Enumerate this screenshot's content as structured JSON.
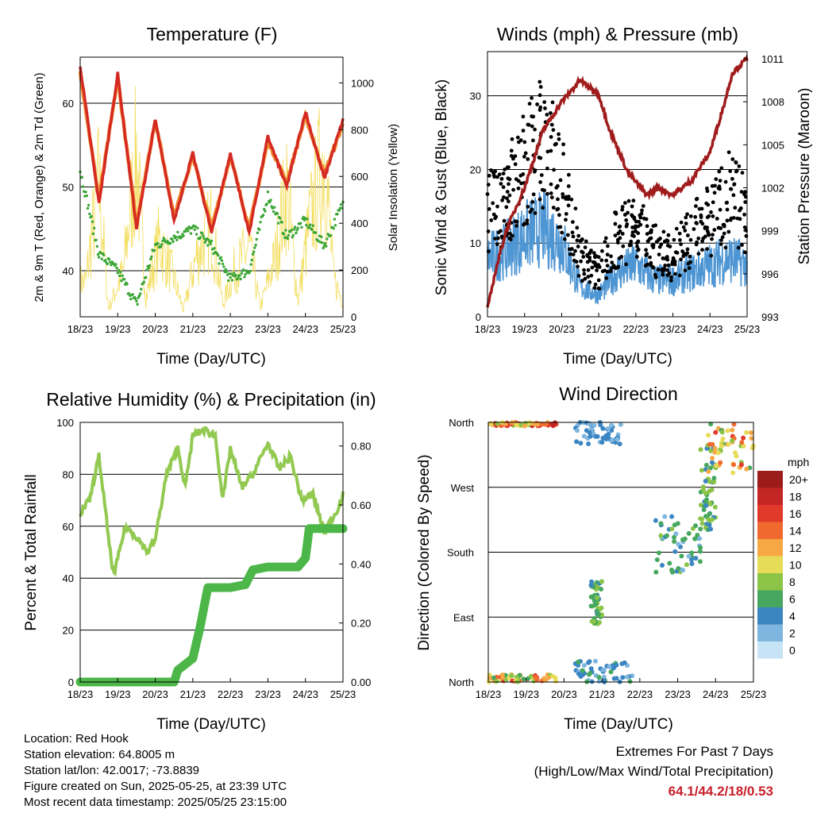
{
  "x_ticks": [
    "18/23",
    "19/23",
    "20/23",
    "21/23",
    "22/23",
    "23/23",
    "24/23",
    "25/23"
  ],
  "x_label": "Time (Day/UTC)",
  "colors": {
    "temp_2m": "#d42a23",
    "temp_9m": "#f18a2d",
    "dewpoint": "#3aa635",
    "solar": "#f3dd5a",
    "wind": "#4d95d3",
    "gust": "#000000",
    "pressure": "#a01c1c",
    "rh": "#92c951",
    "rain": "#4cb648",
    "extremes": "#c8202a"
  },
  "chart_data": [
    {
      "type": "line",
      "title": "Temperature (F)",
      "xlabel": "Time (Day/UTC)",
      "ylabel": "2m & 9m T (Red, Orange) & 2m Td (Green)",
      "y2label": "Solar Insolation (Yellow)",
      "ylim": [
        34.5,
        65.5
      ],
      "yticks": [
        40,
        50,
        60
      ],
      "y2lim": [
        0,
        1110
      ],
      "y2ticks": [
        0,
        200,
        400,
        600,
        800,
        1000
      ],
      "x": [
        0,
        0.5,
        1,
        1.5,
        2,
        2.5,
        3,
        3.5,
        4,
        4.5,
        5,
        5.5,
        6,
        6.5,
        7
      ],
      "series": [
        {
          "key": "temp_2m",
          "values": [
            64.5,
            48,
            63.5,
            45,
            58,
            46,
            54,
            44.5,
            54,
            44.5,
            56,
            50,
            59,
            51,
            58
          ]
        },
        {
          "key": "temp_9m",
          "values": [
            63.8,
            48.5,
            63,
            45.6,
            58,
            46.5,
            53.7,
            45,
            53.7,
            45,
            55.5,
            50.5,
            58.5,
            51.5,
            57.5
          ]
        },
        {
          "key": "dewpoint",
          "values": [
            52,
            42,
            40,
            36,
            43,
            44,
            45,
            43,
            39,
            40,
            49,
            44,
            46,
            43,
            48
          ]
        },
        {
          "key": "solar",
          "points": [
            [
              0.15,
              230
            ],
            [
              0.5,
              900
            ],
            [
              0.75,
              50
            ],
            [
              1.15,
              300
            ],
            [
              1.5,
              1060
            ],
            [
              1.75,
              120
            ],
            [
              2.1,
              500
            ],
            [
              2.5,
              250
            ],
            [
              2.75,
              40
            ],
            [
              3.1,
              400
            ],
            [
              3.5,
              600
            ],
            [
              3.8,
              80
            ],
            [
              4.1,
              300
            ],
            [
              4.5,
              450
            ],
            [
              4.8,
              60
            ],
            [
              5.2,
              400
            ],
            [
              5.5,
              850
            ],
            [
              5.8,
              100
            ],
            [
              6.1,
              600
            ],
            [
              6.5,
              1080
            ],
            [
              6.75,
              250
            ],
            [
              7,
              100
            ]
          ]
        }
      ]
    },
    {
      "type": "scatter",
      "title": "Winds (mph) & Pressure (mb)",
      "xlabel": "Time (Day/UTC)",
      "ylabel": "Sonic Wind & Gust (Blue, Black)",
      "y2label": "Station Pressure (Maroon)",
      "ylim": [
        0,
        36
      ],
      "yticks": [
        0,
        10,
        20,
        30
      ],
      "y2lim": [
        993,
        1011.5
      ],
      "y2ticks": [
        993,
        996,
        999,
        1002,
        1005,
        1008,
        1011
      ],
      "wind_mean": [
        [
          0,
          8
        ],
        [
          0.5,
          9
        ],
        [
          1,
          11
        ],
        [
          1.5,
          12
        ],
        [
          2,
          10
        ],
        [
          2.5,
          4
        ],
        [
          3,
          3
        ],
        [
          3.5,
          6
        ],
        [
          4,
          7
        ],
        [
          4.5,
          5
        ],
        [
          5,
          5
        ],
        [
          5.5,
          6
        ],
        [
          6,
          7
        ],
        [
          6.5,
          8
        ],
        [
          7,
          7
        ]
      ],
      "gust_mean": [
        [
          0,
          14
        ],
        [
          0.5,
          16
        ],
        [
          1,
          20
        ],
        [
          1.5,
          24
        ],
        [
          2,
          18
        ],
        [
          2.5,
          8
        ],
        [
          3,
          6
        ],
        [
          3.5,
          11
        ],
        [
          4,
          12
        ],
        [
          4.5,
          9
        ],
        [
          5,
          8
        ],
        [
          5.5,
          11
        ],
        [
          6,
          13
        ],
        [
          6.5,
          16
        ],
        [
          7,
          14
        ]
      ],
      "pressure": [
        [
          0,
          993.5
        ],
        [
          0.2,
          996
        ],
        [
          0.5,
          999
        ],
        [
          1,
          1002
        ],
        [
          1.5,
          1006
        ],
        [
          2,
          1008
        ],
        [
          2.5,
          1009.5
        ],
        [
          3,
          1008.5
        ],
        [
          3.3,
          1006
        ],
        [
          3.8,
          1003
        ],
        [
          4.3,
          1001.5
        ],
        [
          4.6,
          1002
        ],
        [
          5,
          1001.5
        ],
        [
          5.5,
          1002.5
        ],
        [
          6,
          1004.5
        ],
        [
          6.4,
          1008
        ],
        [
          6.6,
          1010
        ],
        [
          6.8,
          1010.5
        ],
        [
          7,
          1011
        ]
      ]
    },
    {
      "type": "line",
      "title": "Relative Humidity (%) & Precipitation (in)",
      "xlabel": "Time (Day/UTC)",
      "ylabel": "Percent & Total Rainfall",
      "ylim": [
        0,
        100
      ],
      "yticks": [
        0,
        20,
        40,
        60,
        80,
        100
      ],
      "y2lim": [
        0,
        0.88
      ],
      "y2ticks": [
        "0.00",
        "0.20",
        "0.40",
        "0.60",
        "0.80"
      ],
      "series": [
        {
          "key": "rh",
          "points": [
            [
              0,
              65
            ],
            [
              0.25,
              70
            ],
            [
              0.5,
              87
            ],
            [
              0.8,
              50
            ],
            [
              0.9,
              41
            ],
            [
              1.2,
              60
            ],
            [
              1.5,
              56
            ],
            [
              1.8,
              50
            ],
            [
              2.0,
              55
            ],
            [
              2.3,
              80
            ],
            [
              2.6,
              90
            ],
            [
              2.8,
              75
            ],
            [
              3.0,
              95
            ],
            [
              3.3,
              97
            ],
            [
              3.6,
              95
            ],
            [
              3.8,
              70
            ],
            [
              4.0,
              90
            ],
            [
              4.3,
              75
            ],
            [
              4.6,
              80
            ],
            [
              5.0,
              92
            ],
            [
              5.3,
              82
            ],
            [
              5.6,
              87
            ],
            [
              5.9,
              70
            ],
            [
              6.2,
              72
            ],
            [
              6.5,
              58
            ],
            [
              6.8,
              65
            ],
            [
              7.0,
              72
            ]
          ]
        },
        {
          "key": "rain",
          "points": [
            [
              0,
              0
            ],
            [
              2.5,
              0
            ],
            [
              2.6,
              0.04
            ],
            [
              3.0,
              0.08
            ],
            [
              3.2,
              0.19
            ],
            [
              3.4,
              0.32
            ],
            [
              3.6,
              0.32
            ],
            [
              4.0,
              0.32
            ],
            [
              4.4,
              0.33
            ],
            [
              4.6,
              0.38
            ],
            [
              5.0,
              0.39
            ],
            [
              5.8,
              0.39
            ],
            [
              6.0,
              0.42
            ],
            [
              6.1,
              0.52
            ],
            [
              7,
              0.52
            ]
          ]
        }
      ]
    },
    {
      "type": "scatter",
      "title": "Wind Direction",
      "xlabel": "Time (Day/UTC)",
      "ylabel": "Direction (Colored By Speed)",
      "yticks": [
        "North",
        "East",
        "South",
        "West",
        "North"
      ],
      "colorbar_title": "mph",
      "colorbar_labels": [
        "20+",
        "18",
        "16",
        "14",
        "12",
        "10",
        "8",
        "6",
        "4",
        "2",
        "0"
      ],
      "colorbar_colors": [
        "#9c1c1c",
        "#c42525",
        "#e23a2a",
        "#f06a30",
        "#f6a845",
        "#e6dc58",
        "#8cc447",
        "#46a85e",
        "#3b86c2",
        "#7fb6df",
        "#c6e4f6"
      ],
      "clusters": [
        {
          "x": [
            0,
            1.9
          ],
          "deg": [
            355,
            360
          ],
          "speed": [
            8,
            18
          ]
        },
        {
          "x": [
            0,
            1.9
          ],
          "deg": [
            0,
            10
          ],
          "speed": [
            6,
            16
          ]
        },
        {
          "x": [
            2.3,
            3.5
          ],
          "deg": [
            330,
            360
          ],
          "speed": [
            1,
            5
          ]
        },
        {
          "x": [
            2.3,
            3.8
          ],
          "deg": [
            0,
            30
          ],
          "speed": [
            1,
            6
          ]
        },
        {
          "x": [
            2.7,
            3.0
          ],
          "deg": [
            80,
            140
          ],
          "speed": [
            4,
            9
          ]
        },
        {
          "x": [
            4.4,
            5.6
          ],
          "deg": [
            150,
            230
          ],
          "speed": [
            2,
            8
          ]
        },
        {
          "x": [
            5.6,
            6.0
          ],
          "deg": [
            210,
            330
          ],
          "speed": [
            3,
            9
          ]
        },
        {
          "x": [
            5.8,
            7.0
          ],
          "deg": [
            290,
            360
          ],
          "speed": [
            6,
            16
          ]
        }
      ]
    }
  ],
  "info": {
    "location": "Location: Red Hook",
    "elevation": "Station elevation: 64.8005 m",
    "latlon": "Station lat/lon: 42.0017; -73.8839",
    "created": "Figure created on Sun, 2025-05-25, at 23:39 UTC",
    "recent": "Most recent data timestamp: 2025/05/25 23:15:00"
  },
  "extremes": {
    "line1": "Extremes For Past 7 Days",
    "line2": "(High/Low/Max Wind/Total Precipitation)",
    "values": "64.1/44.2/18/0.53"
  }
}
